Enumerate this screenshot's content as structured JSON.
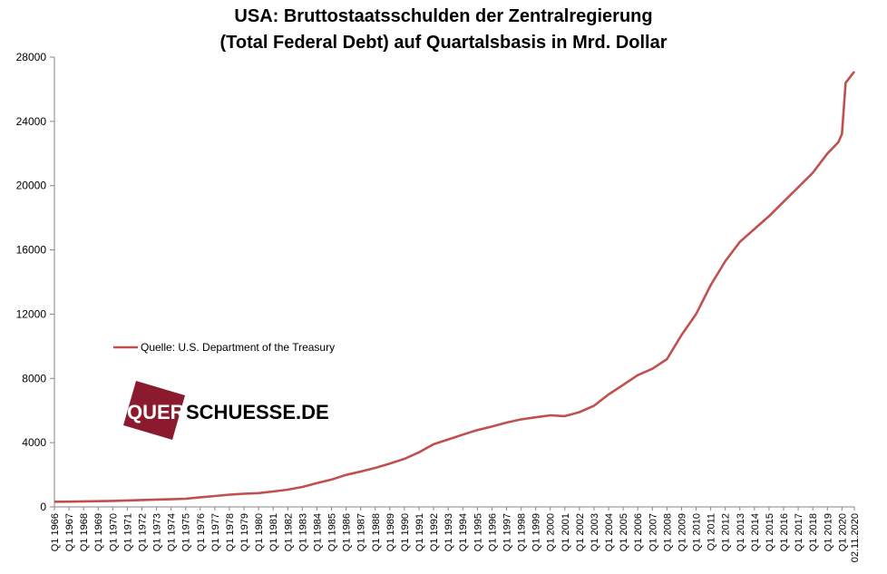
{
  "title_line1": "USA: Bruttostaatsschulden der Zentralregierung",
  "title_line2": "(Total Federal Debt) auf Quartalsbasis in Mrd. Dollar",
  "legend_label": "Quelle:  U.S. Department of the Treasury",
  "watermark": {
    "part1": "QUER",
    "part2": "SCHUESSE.DE",
    "colors": {
      "box": "#8b1a2f",
      "part1": "#ffffff",
      "part2": "#000000"
    }
  },
  "chart_data": {
    "type": "line",
    "title": "USA: Bruttostaatsschulden der Zentralregierung (Total Federal Debt) auf Quartalsbasis in Mrd. Dollar",
    "xlabel": "",
    "ylabel": "",
    "ylim": [
      0,
      28000
    ],
    "yticks": [
      0,
      4000,
      8000,
      12000,
      16000,
      20000,
      24000,
      28000
    ],
    "xticks": [
      "Q1 1966",
      "Q1 1967",
      "Q1 1968",
      "Q1 1969",
      "Q1 1970",
      "Q1 1971",
      "Q1 1972",
      "Q1 1973",
      "Q1 1974",
      "Q1 1975",
      "Q1 1976",
      "Q1 1977",
      "Q1 1978",
      "Q1 1979",
      "Q1 1980",
      "Q1 1981",
      "Q1 1982",
      "Q1 1983",
      "Q1 1984",
      "Q1 1985",
      "Q1 1986",
      "Q1 1987",
      "Q1 1988",
      "Q1 1989",
      "Q1 1990",
      "Q1 1991",
      "Q1 1992",
      "Q1 1993",
      "Q1 1994",
      "Q1 1995",
      "Q1 1996",
      "Q1 1997",
      "Q1 1998",
      "Q1 1999",
      "Q1 2000",
      "Q1 2001",
      "Q1 2002",
      "Q1 2003",
      "Q1 2004",
      "Q1 2005",
      "Q1 2006",
      "Q1 2007",
      "Q1 2008",
      "Q1 2009",
      "Q1 2010",
      "Q1 2011",
      "Q1 2012",
      "Q1 2013",
      "Q1 2014",
      "Q1 2015",
      "Q1 2016",
      "Q1 2017",
      "Q1 2018",
      "Q1 2019",
      "Q1 2020",
      "02.11.2020"
    ],
    "grid": false,
    "legend_position": "left-middle",
    "line_color": "#c0504d",
    "series": [
      {
        "name": "Quelle:  U.S. Department of the Treasury",
        "points": [
          [
            "Q1 1966",
            320
          ],
          [
            "Q1 1967",
            329
          ],
          [
            "Q1 1968",
            345
          ],
          [
            "Q1 1969",
            354
          ],
          [
            "Q1 1970",
            370
          ],
          [
            "Q1 1971",
            398
          ],
          [
            "Q1 1972",
            427
          ],
          [
            "Q1 1973",
            458
          ],
          [
            "Q1 1974",
            475
          ],
          [
            "Q1 1975",
            509
          ],
          [
            "Q1 1976",
            600
          ],
          [
            "Q1 1977",
            680
          ],
          [
            "Q1 1978",
            760
          ],
          [
            "Q1 1979",
            820
          ],
          [
            "Q1 1980",
            860
          ],
          [
            "Q1 1981",
            960
          ],
          [
            "Q1 1982",
            1070
          ],
          [
            "Q1 1983",
            1240
          ],
          [
            "Q1 1984",
            1480
          ],
          [
            "Q1 1985",
            1700
          ],
          [
            "Q1 1986",
            1990
          ],
          [
            "Q1 1987",
            2200
          ],
          [
            "Q1 1988",
            2430
          ],
          [
            "Q1 1989",
            2700
          ],
          [
            "Q1 1990",
            2990
          ],
          [
            "Q1 1991",
            3400
          ],
          [
            "Q1 1992",
            3900
          ],
          [
            "Q1 1993",
            4200
          ],
          [
            "Q1 1994",
            4500
          ],
          [
            "Q1 1995",
            4780
          ],
          [
            "Q1 1996",
            5000
          ],
          [
            "Q1 1997",
            5250
          ],
          [
            "Q1 1998",
            5450
          ],
          [
            "Q1 1999",
            5580
          ],
          [
            "Q1 2000",
            5700
          ],
          [
            "Q1 2001",
            5650
          ],
          [
            "Q1 2002",
            5900
          ],
          [
            "Q1 2003",
            6300
          ],
          [
            "Q1 2004",
            7000
          ],
          [
            "Q1 2005",
            7600
          ],
          [
            "Q1 2006",
            8200
          ],
          [
            "Q1 2007",
            8600
          ],
          [
            "Q1 2008",
            9200
          ],
          [
            "Q1 2009",
            10700
          ],
          [
            "Q1 2010",
            12000
          ],
          [
            "Q1 2011",
            13800
          ],
          [
            "Q1 2012",
            15300
          ],
          [
            "Q1 2013",
            16500
          ],
          [
            "Q1 2014",
            17300
          ],
          [
            "Q1 2015",
            18100
          ],
          [
            "Q1 2016",
            19000
          ],
          [
            "Q1 2017",
            19900
          ],
          [
            "Q1 2018",
            20800
          ],
          [
            "Q1 2019",
            22000
          ],
          [
            "Q1 2019.75",
            22700
          ],
          [
            "Q1 2020",
            23200
          ],
          [
            "Q2 2020",
            26400
          ],
          [
            "02.11.2020",
            27100
          ]
        ]
      }
    ]
  }
}
